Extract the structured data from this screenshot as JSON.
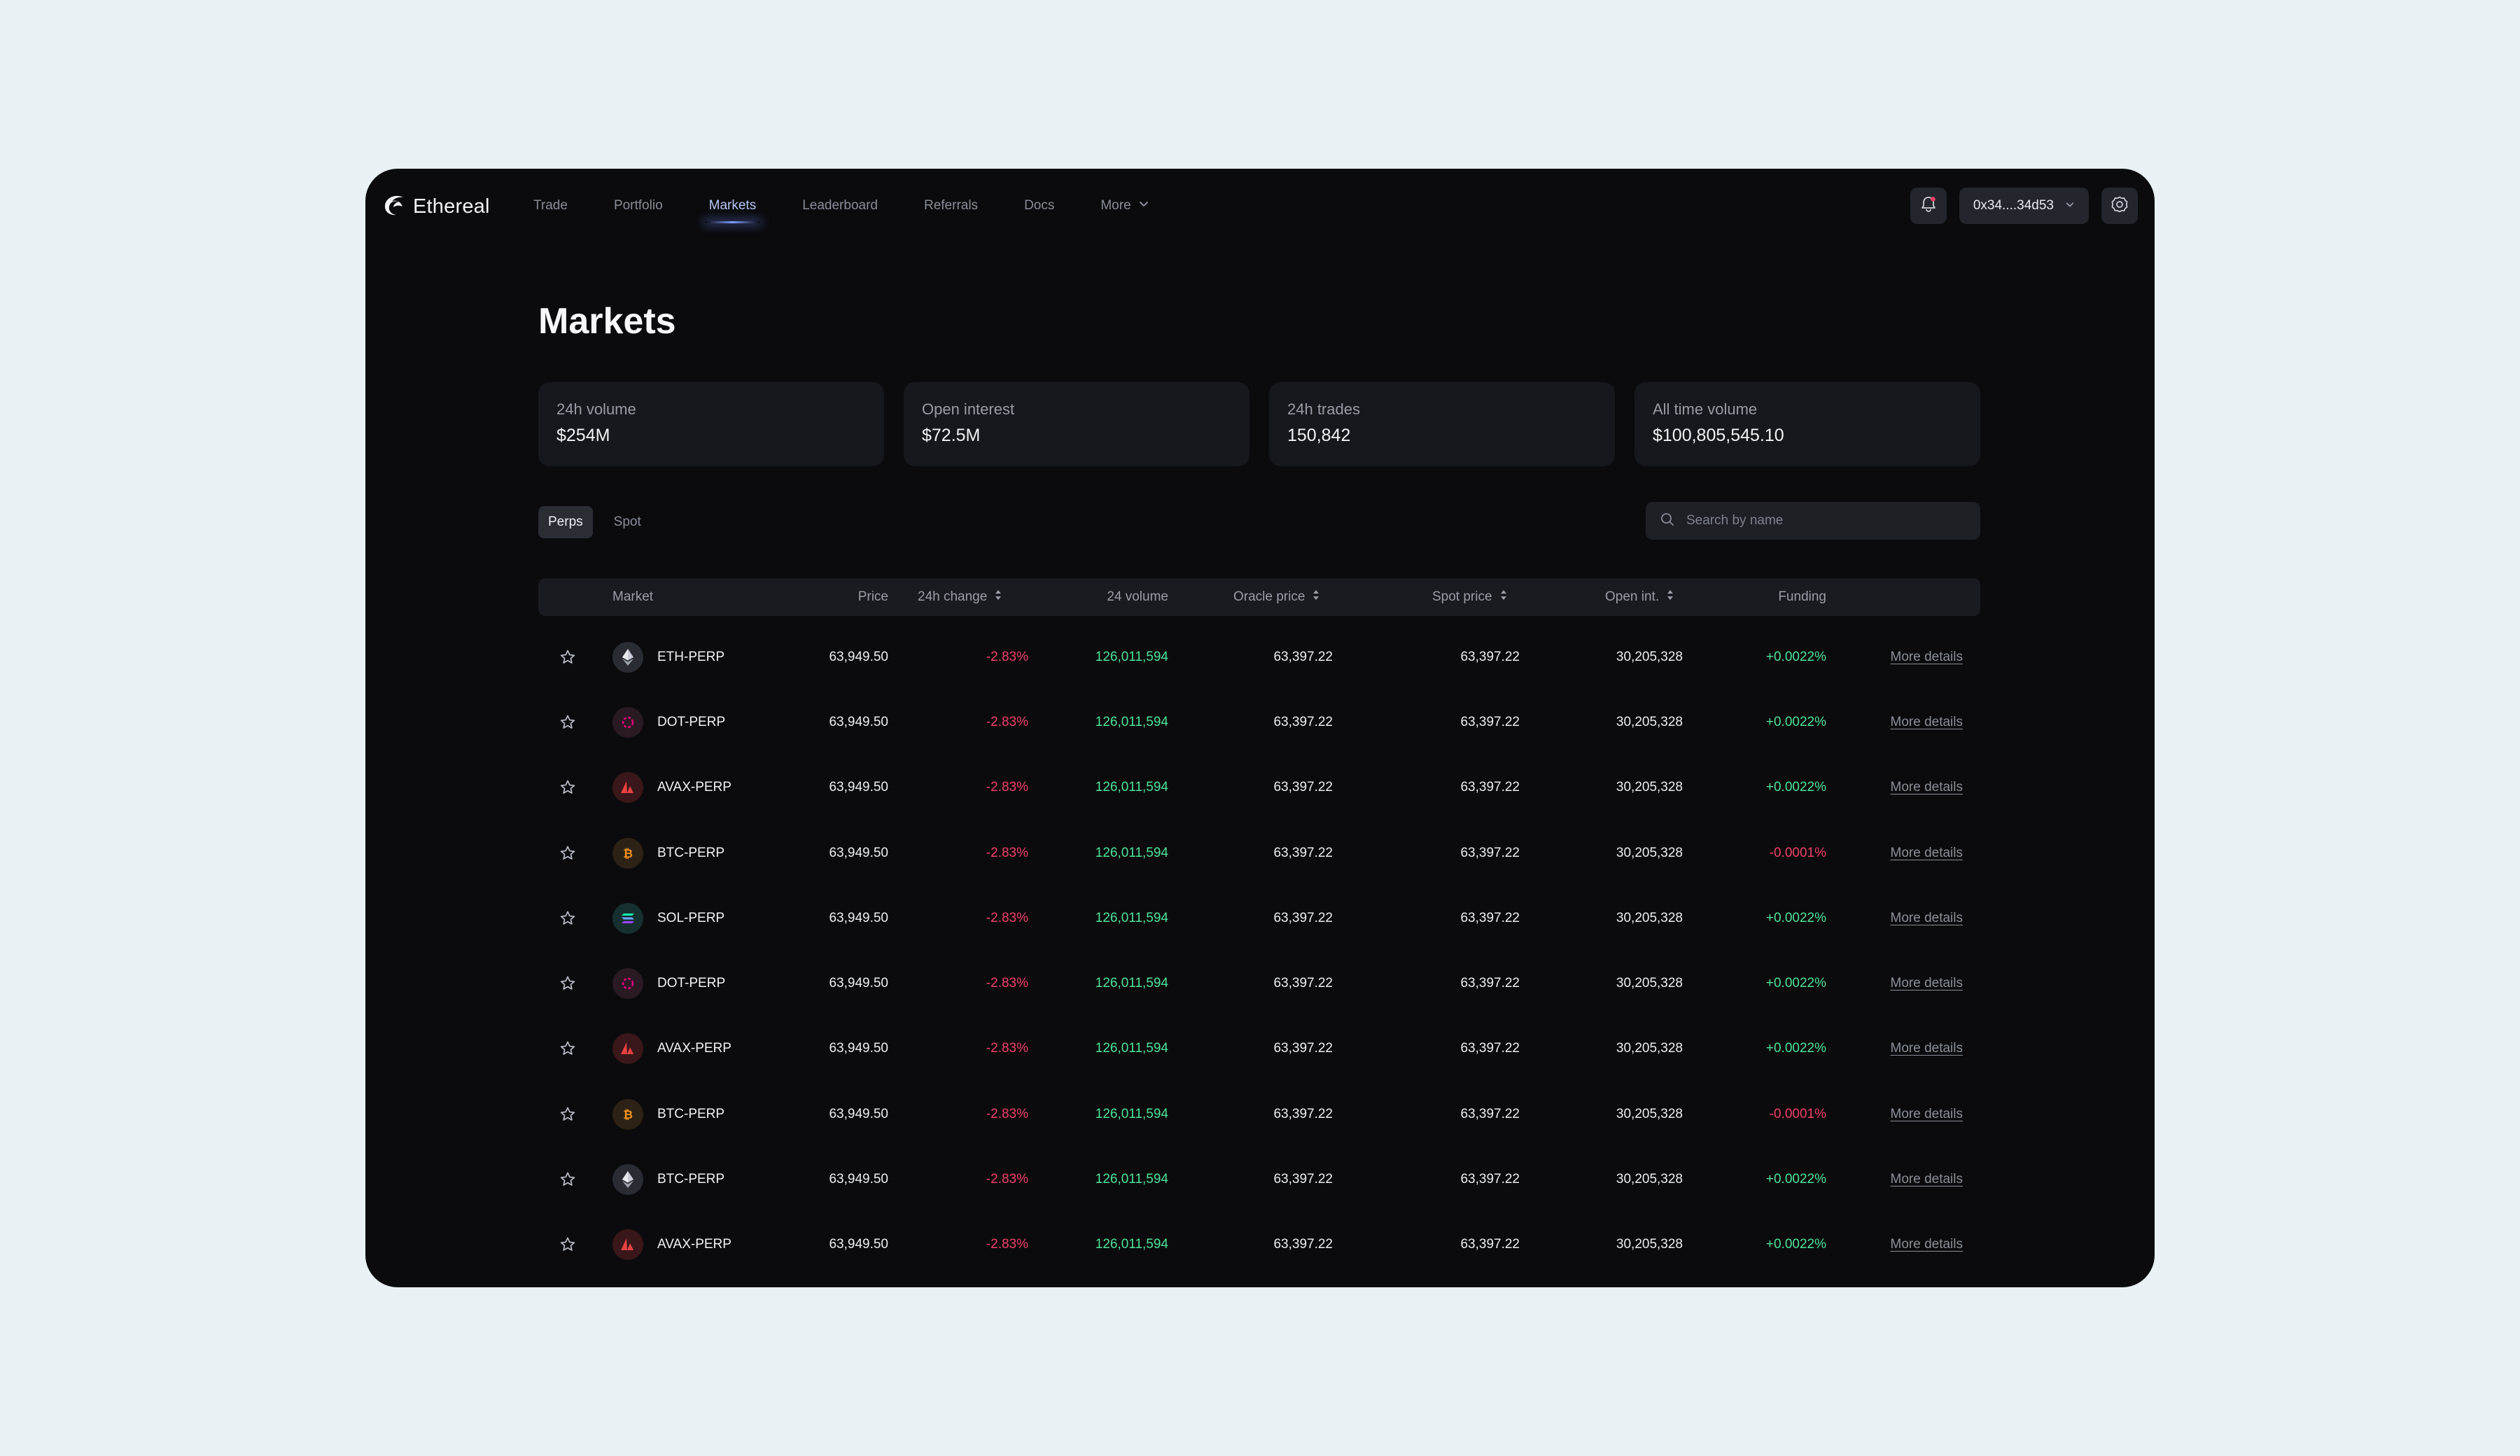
{
  "app": {
    "brand": "Ethereal",
    "nav": [
      {
        "label": "Trade",
        "active": false
      },
      {
        "label": "Portfolio",
        "active": false
      },
      {
        "label": "Markets",
        "active": true
      },
      {
        "label": "Leaderboard",
        "active": false
      },
      {
        "label": "Referrals",
        "active": false
      },
      {
        "label": "Docs",
        "active": false
      },
      {
        "label": "More",
        "active": false
      }
    ],
    "wallet": "0x34....34d53"
  },
  "page": {
    "title": "Markets"
  },
  "stats": [
    {
      "label": "24h volume",
      "value": "$254M"
    },
    {
      "label": "Open interest",
      "value": "$72.5M"
    },
    {
      "label": "24h trades",
      "value": "150,842"
    },
    {
      "label": "All time volume",
      "value": "$100,805,545.10"
    }
  ],
  "tabs": [
    {
      "label": "Perps",
      "active": true
    },
    {
      "label": "Spot",
      "active": false
    }
  ],
  "search": {
    "placeholder": "Search by name"
  },
  "table": {
    "headers": {
      "market": "Market",
      "price": "Price",
      "change": "24h change",
      "volume": "24 volume",
      "oracle": "Oracle price",
      "spot": "Spot price",
      "oi": "Open int.",
      "funding": "Funding"
    },
    "rows": [
      {
        "coin": "eth",
        "name": "ETH-PERP",
        "price": "63,949.50",
        "change": "-2.83%",
        "volume": "126,011,594",
        "oracle": "63,397.22",
        "spot": "63,397.22",
        "oi": "30,205,328",
        "funding": "+0.0022%",
        "link": "More details"
      },
      {
        "coin": "dot",
        "name": "DOT-PERP",
        "price": "63,949.50",
        "change": "-2.83%",
        "volume": "126,011,594",
        "oracle": "63,397.22",
        "spot": "63,397.22",
        "oi": "30,205,328",
        "funding": "+0.0022%",
        "link": "More details"
      },
      {
        "coin": "avax",
        "name": "AVAX-PERP",
        "price": "63,949.50",
        "change": "-2.83%",
        "volume": "126,011,594",
        "oracle": "63,397.22",
        "spot": "63,397.22",
        "oi": "30,205,328",
        "funding": "+0.0022%",
        "link": "More details"
      },
      {
        "coin": "btc",
        "name": "BTC-PERP",
        "price": "63,949.50",
        "change": "-2.83%",
        "volume": "126,011,594",
        "oracle": "63,397.22",
        "spot": "63,397.22",
        "oi": "30,205,328",
        "funding": "-0.0001%",
        "link": "More details"
      },
      {
        "coin": "sol",
        "name": "SOL-PERP",
        "price": "63,949.50",
        "change": "-2.83%",
        "volume": "126,011,594",
        "oracle": "63,397.22",
        "spot": "63,397.22",
        "oi": "30,205,328",
        "funding": "+0.0022%",
        "link": "More details"
      },
      {
        "coin": "dot",
        "name": "DOT-PERP",
        "price": "63,949.50",
        "change": "-2.83%",
        "volume": "126,011,594",
        "oracle": "63,397.22",
        "spot": "63,397.22",
        "oi": "30,205,328",
        "funding": "+0.0022%",
        "link": "More details"
      },
      {
        "coin": "avax",
        "name": "AVAX-PERP",
        "price": "63,949.50",
        "change": "-2.83%",
        "volume": "126,011,594",
        "oracle": "63,397.22",
        "spot": "63,397.22",
        "oi": "30,205,328",
        "funding": "+0.0022%",
        "link": "More details"
      },
      {
        "coin": "btc",
        "name": "BTC-PERP",
        "price": "63,949.50",
        "change": "-2.83%",
        "volume": "126,011,594",
        "oracle": "63,397.22",
        "spot": "63,397.22",
        "oi": "30,205,328",
        "funding": "-0.0001%",
        "link": "More details"
      },
      {
        "coin": "eth",
        "name": "BTC-PERP",
        "price": "63,949.50",
        "change": "-2.83%",
        "volume": "126,011,594",
        "oracle": "63,397.22",
        "spot": "63,397.22",
        "oi": "30,205,328",
        "funding": "+0.0022%",
        "link": "More details"
      },
      {
        "coin": "avax",
        "name": "AVAX-PERP",
        "price": "63,949.50",
        "change": "-2.83%",
        "volume": "126,011,594",
        "oracle": "63,397.22",
        "spot": "63,397.22",
        "oi": "30,205,328",
        "funding": "+0.0022%",
        "link": "More details"
      }
    ]
  },
  "colors": {
    "accent": "#7f9cff",
    "negative": "#f0406a",
    "positive": "#4fe39a",
    "background": "#0b0b0d"
  },
  "icons": {
    "brand": "ethereal-logo-icon",
    "bell": "bell-icon",
    "settings": "gear-icon",
    "search": "search-icon",
    "star": "star-icon",
    "sort": "sort-icon",
    "chevron": "chevron-down-icon"
  }
}
